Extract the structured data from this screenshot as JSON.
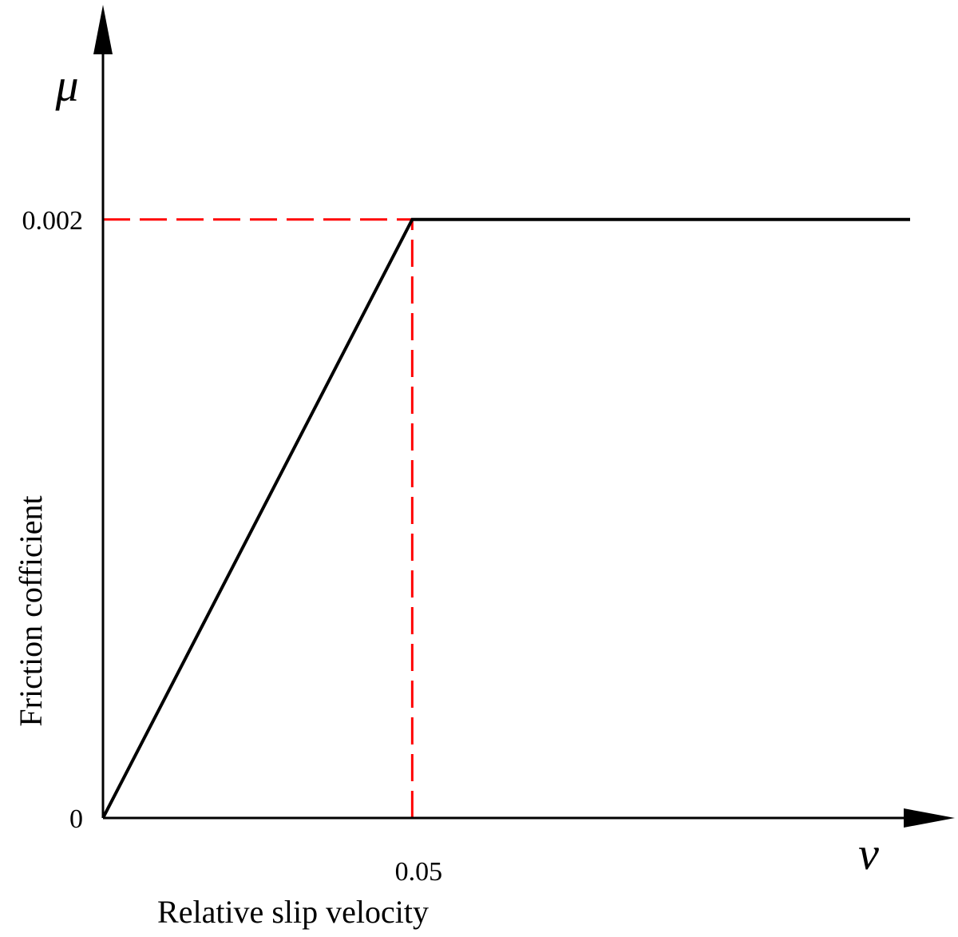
{
  "chart_data": {
    "type": "line",
    "series": [
      {
        "x": [
          0,
          0.05,
          0.1305
        ],
        "y": [
          0,
          0.002,
          0.002
        ]
      }
    ],
    "reference_lines": [
      {
        "x": [
          0,
          0.05
        ],
        "y": [
          0.002,
          0.002
        ],
        "style": "dashed",
        "color": "#ff0000"
      },
      {
        "x": [
          0.05,
          0.05
        ],
        "y": [
          0,
          0.002
        ],
        "style": "dashed",
        "color": "#ff0000"
      }
    ],
    "x_ticks": [
      {
        "value": 0.05,
        "label": "0.05"
      }
    ],
    "y_ticks": [
      {
        "value": 0,
        "label": "0"
      },
      {
        "value": 0.002,
        "label": "0.002"
      }
    ],
    "x_symbol": "v",
    "y_symbol": "μ",
    "xlabel": "Relative slip velocity",
    "ylabel": "Friction cofficient",
    "xlim": [
      0,
      0.1305
    ],
    "ylim": [
      0,
      0.00264
    ],
    "grid": false,
    "colors": {
      "curve": "#000000",
      "reference": "#ff0000",
      "axes": "#000000"
    }
  }
}
